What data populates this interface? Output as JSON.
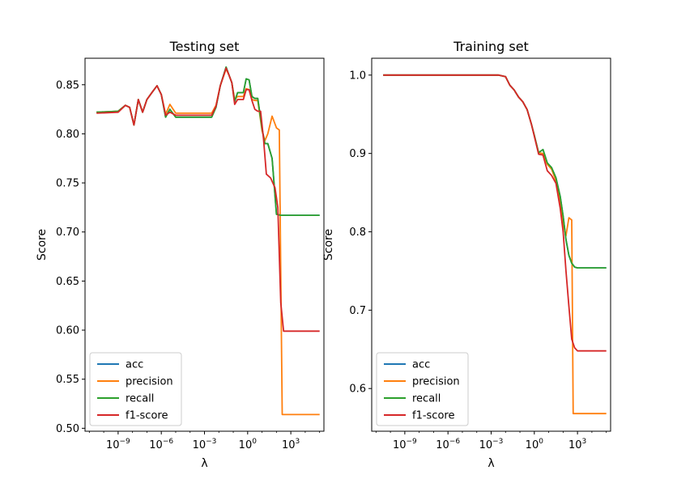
{
  "figure": {
    "series_colors": {
      "acc": "#1f77b4",
      "precision": "#ff7f0e",
      "recall": "#2ca02c",
      "f1-score": "#d62728"
    }
  },
  "chart_data": [
    {
      "type": "line",
      "title": "Testing set",
      "xlabel": "λ",
      "ylabel": "Score",
      "xscale": "log",
      "xlim_exponent": [
        -11.3,
        5.3
      ],
      "ylim": [
        0.497,
        0.877
      ],
      "xtick_labels": [
        {
          "exp": -9,
          "base": "10",
          "power": "−9"
        },
        {
          "exp": -6,
          "base": "10",
          "power": "−6"
        },
        {
          "exp": -3,
          "base": "10",
          "power": "−3"
        },
        {
          "exp": 0,
          "base": "10",
          "power": "0"
        },
        {
          "exp": 3,
          "base": "10",
          "power": "3"
        }
      ],
      "yticks": [
        0.5,
        0.55,
        0.6,
        0.65,
        0.7,
        0.75,
        0.8,
        0.85
      ],
      "ytick_labels": [
        "0.50",
        "0.55",
        "0.60",
        "0.65",
        "0.70",
        "0.75",
        "0.80",
        "0.85"
      ],
      "grid": false,
      "legend": "lower-left",
      "series": [
        {
          "name": "acc",
          "color": "#1f77b4",
          "x": [
            -10.5,
            -9,
            -8.5,
            -8.2,
            -7.9,
            -7.6,
            -7.3,
            -7.0,
            -6.6,
            -6.3,
            -6.0,
            -5.7,
            -5.4,
            -5.0,
            -4.7,
            -4.4,
            -4.1,
            -3.7,
            -3.3,
            -3,
            -2.5,
            -2.2,
            -1.9,
            -1.5,
            -1.3,
            -1.1,
            -0.9,
            -0.7,
            -0.5,
            -0.3,
            -0.1,
            0.1,
            0.3,
            0.5,
            0.7,
            1.0,
            1.2,
            1.4,
            1.7,
            2.0,
            2.3,
            2.6,
            2.9,
            3.2,
            5
          ],
          "y": [
            0.822,
            0.823,
            0.829,
            0.827,
            0.809,
            0.835,
            0.822,
            0.835,
            0.843,
            0.849,
            0.84,
            0.817,
            0.825,
            0.817,
            0.817,
            0.817,
            0.817,
            0.817,
            0.817,
            0.817,
            0.817,
            0.827,
            0.849,
            0.868,
            0.86,
            0.852,
            0.833,
            0.842,
            0.842,
            0.842,
            0.856,
            0.855,
            0.838,
            0.836,
            0.836,
            0.805,
            0.79,
            0.79,
            0.775,
            0.718,
            0.717,
            0.717,
            0.717,
            0.717,
            0.717
          ]
        },
        {
          "name": "precision",
          "color": "#ff7f0e",
          "x": [
            -10.5,
            -9,
            -8.5,
            -8.2,
            -7.9,
            -7.6,
            -7.3,
            -7.0,
            -6.6,
            -6.3,
            -6.0,
            -5.7,
            -5.4,
            -5.0,
            -4.7,
            -4.4,
            -4.1,
            -3.7,
            -3.3,
            -3,
            -2.5,
            -2.2,
            -1.9,
            -1.5,
            -1.3,
            -1.1,
            -0.9,
            -0.7,
            -0.5,
            -0.3,
            -0.1,
            0.1,
            0.3,
            0.5,
            0.7,
            1.0,
            1.2,
            1.4,
            1.7,
            2.0,
            2.2,
            2.4,
            2.5,
            5
          ],
          "y": [
            0.822,
            0.823,
            0.829,
            0.827,
            0.809,
            0.835,
            0.822,
            0.835,
            0.843,
            0.849,
            0.84,
            0.82,
            0.83,
            0.821,
            0.821,
            0.821,
            0.821,
            0.821,
            0.821,
            0.821,
            0.821,
            0.829,
            0.849,
            0.866,
            0.86,
            0.852,
            0.835,
            0.838,
            0.838,
            0.838,
            0.846,
            0.845,
            0.835,
            0.834,
            0.834,
            0.803,
            0.793,
            0.8,
            0.818,
            0.806,
            0.804,
            0.514,
            0.514,
            0.514
          ]
        },
        {
          "name": "recall",
          "color": "#2ca02c",
          "x": [
            -10.5,
            -9,
            -8.5,
            -8.2,
            -7.9,
            -7.6,
            -7.3,
            -7.0,
            -6.6,
            -6.3,
            -6.0,
            -5.7,
            -5.4,
            -5.0,
            -4.7,
            -4.4,
            -4.1,
            -3.7,
            -3.3,
            -3,
            -2.5,
            -2.2,
            -1.9,
            -1.5,
            -1.3,
            -1.1,
            -0.9,
            -0.7,
            -0.5,
            -0.3,
            -0.1,
            0.1,
            0.3,
            0.5,
            0.7,
            1.0,
            1.2,
            1.4,
            1.7,
            2.0,
            2.3,
            2.6,
            2.9,
            3.2,
            5
          ],
          "y": [
            0.822,
            0.823,
            0.829,
            0.827,
            0.809,
            0.835,
            0.822,
            0.835,
            0.843,
            0.849,
            0.84,
            0.817,
            0.825,
            0.817,
            0.817,
            0.817,
            0.817,
            0.817,
            0.817,
            0.817,
            0.817,
            0.827,
            0.849,
            0.868,
            0.86,
            0.852,
            0.833,
            0.842,
            0.842,
            0.842,
            0.856,
            0.855,
            0.838,
            0.836,
            0.836,
            0.805,
            0.79,
            0.79,
            0.775,
            0.718,
            0.717,
            0.717,
            0.717,
            0.717,
            0.717
          ]
        },
        {
          "name": "f1-score",
          "color": "#d62728",
          "x": [
            -10.5,
            -9,
            -8.5,
            -8.2,
            -7.9,
            -7.6,
            -7.3,
            -7.0,
            -6.6,
            -6.3,
            -6.0,
            -5.7,
            -5.4,
            -5.0,
            -4.7,
            -4.4,
            -4.1,
            -3.7,
            -3.3,
            -3,
            -2.5,
            -2.2,
            -1.9,
            -1.5,
            -1.3,
            -1.1,
            -0.9,
            -0.7,
            -0.5,
            -0.3,
            -0.1,
            0.1,
            0.3,
            0.5,
            0.7,
            0.9,
            1.1,
            1.3,
            1.6,
            1.9,
            2.1,
            2.3,
            2.5,
            5
          ],
          "y": [
            0.821,
            0.822,
            0.829,
            0.827,
            0.809,
            0.835,
            0.822,
            0.835,
            0.843,
            0.849,
            0.84,
            0.819,
            0.822,
            0.819,
            0.819,
            0.819,
            0.819,
            0.819,
            0.819,
            0.819,
            0.819,
            0.828,
            0.849,
            0.867,
            0.86,
            0.852,
            0.83,
            0.835,
            0.835,
            0.835,
            0.845,
            0.845,
            0.834,
            0.825,
            0.823,
            0.823,
            0.795,
            0.759,
            0.755,
            0.745,
            0.725,
            0.628,
            0.599,
            0.599
          ]
        }
      ]
    },
    {
      "type": "line",
      "title": "Training set",
      "xlabel": "λ",
      "ylabel": "Score",
      "xscale": "log",
      "xlim_exponent": [
        -11.3,
        5.3
      ],
      "ylim": [
        0.5455,
        1.0215
      ],
      "xtick_labels": [
        {
          "exp": -9,
          "base": "10",
          "power": "−9"
        },
        {
          "exp": -6,
          "base": "10",
          "power": "−6"
        },
        {
          "exp": -3,
          "base": "10",
          "power": "−3"
        },
        {
          "exp": 0,
          "base": "10",
          "power": "0"
        },
        {
          "exp": 3,
          "base": "10",
          "power": "3"
        }
      ],
      "yticks": [
        0.6,
        0.7,
        0.8,
        0.9,
        1.0
      ],
      "ytick_labels": [
        "0.6",
        "0.7",
        "0.8",
        "0.9",
        "1.0"
      ],
      "grid": false,
      "legend": "lower-left",
      "series": [
        {
          "name": "acc",
          "color": "#1f77b4",
          "x": [
            -10.5,
            -5,
            -2.5,
            -2,
            -1.7,
            -1.4,
            -1.1,
            -0.8,
            -0.5,
            -0.2,
            0,
            0.3,
            0.6,
            0.9,
            1.2,
            1.5,
            1.8,
            2.0,
            2.2,
            2.4,
            2.6,
            2.8,
            3.0,
            5
          ],
          "y": [
            1.0,
            1.0,
            1.0,
            0.998,
            0.987,
            0.981,
            0.972,
            0.966,
            0.956,
            0.937,
            0.923,
            0.901,
            0.905,
            0.888,
            0.882,
            0.869,
            0.845,
            0.82,
            0.79,
            0.77,
            0.76,
            0.755,
            0.754,
            0.754
          ]
        },
        {
          "name": "precision",
          "color": "#ff7f0e",
          "x": [
            -10.5,
            -5,
            -2.5,
            -2,
            -1.7,
            -1.4,
            -1.1,
            -0.8,
            -0.5,
            -0.2,
            0,
            0.3,
            0.6,
            0.9,
            1.2,
            1.5,
            1.8,
            2.0,
            2.2,
            2.4,
            2.6,
            2.7,
            2.8,
            5
          ],
          "y": [
            1.0,
            1.0,
            1.0,
            0.998,
            0.987,
            0.981,
            0.972,
            0.966,
            0.956,
            0.937,
            0.923,
            0.901,
            0.9,
            0.886,
            0.88,
            0.865,
            0.838,
            0.81,
            0.795,
            0.818,
            0.815,
            0.568,
            0.568,
            0.568
          ]
        },
        {
          "name": "recall",
          "color": "#2ca02c",
          "x": [
            -10.5,
            -5,
            -2.5,
            -2,
            -1.7,
            -1.4,
            -1.1,
            -0.8,
            -0.5,
            -0.2,
            0,
            0.3,
            0.6,
            0.9,
            1.2,
            1.5,
            1.8,
            2.0,
            2.2,
            2.4,
            2.6,
            2.8,
            3.0,
            5
          ],
          "y": [
            1.0,
            1.0,
            1.0,
            0.998,
            0.987,
            0.981,
            0.972,
            0.966,
            0.956,
            0.937,
            0.923,
            0.901,
            0.905,
            0.888,
            0.882,
            0.869,
            0.845,
            0.82,
            0.79,
            0.77,
            0.76,
            0.755,
            0.754,
            0.754
          ]
        },
        {
          "name": "f1-score",
          "color": "#d62728",
          "x": [
            -10.5,
            -5,
            -2.5,
            -2,
            -1.7,
            -1.4,
            -1.1,
            -0.8,
            -0.5,
            -0.2,
            0,
            0.3,
            0.6,
            0.9,
            1.2,
            1.5,
            1.8,
            2.0,
            2.2,
            2.4,
            2.6,
            2.8,
            3.0,
            5
          ],
          "y": [
            1.0,
            1.0,
            1.0,
            0.998,
            0.987,
            0.981,
            0.972,
            0.966,
            0.956,
            0.937,
            0.922,
            0.899,
            0.898,
            0.878,
            0.872,
            0.862,
            0.83,
            0.8,
            0.75,
            0.705,
            0.663,
            0.652,
            0.648,
            0.648
          ]
        }
      ]
    }
  ]
}
